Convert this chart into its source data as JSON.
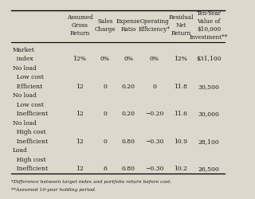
{
  "headers": [
    "Assumed\nGross\nReturn",
    "Sales\nCharge",
    "Expense\nRatio",
    "Operating\nEfficiency*",
    "Residual\nNet\nReturn",
    "Ten-Year\nValue of\n$10,000\nInvestment**"
  ],
  "rows": [
    {
      "label1": "Market",
      "label2": "  index",
      "label3": "",
      "values": [
        "12%",
        "0%",
        "0%",
        "0%",
        "12%",
        "$31,100"
      ]
    },
    {
      "label1": "No load",
      "label2": "  Low cost",
      "label3": "  Efficient",
      "values": [
        "12",
        "0",
        "0.20",
        "0",
        "11.8",
        "30,500"
      ]
    },
    {
      "label1": "No load",
      "label2": "  Low cost",
      "label3": "  Inefficient",
      "values": [
        "12",
        "0",
        "0.20",
        "−0.20",
        "11.6",
        "30,000"
      ]
    },
    {
      "label1": "No load",
      "label2": "  High cost",
      "label3": "  Inefficient",
      "values": [
        "12",
        "0",
        "0.80",
        "−0.30",
        "10.9",
        "28,100"
      ]
    },
    {
      "label1": "Load",
      "label2": "  High cost",
      "label3": "  Inefficient",
      "values": [
        "12",
        "6",
        "0.80",
        "−0.30",
        "10.2",
        "26,500"
      ]
    }
  ],
  "footnotes": [
    "*Difference between target index and portfolio return before cost.",
    "**Assumed 10-year holding period."
  ],
  "bg_color": "#ddd8cc",
  "text_color": "#1a1a1a",
  "header_fs": 5.2,
  "body_fs": 5.5,
  "footnote_fs": 4.3
}
